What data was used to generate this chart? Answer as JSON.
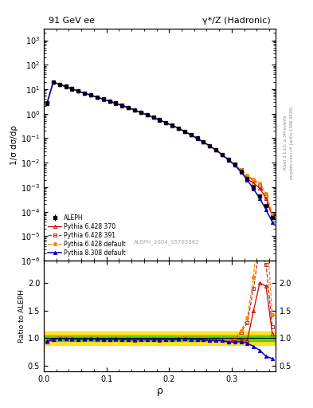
{
  "title_left": "91 GeV ee",
  "title_right": "γ*/Z (Hadronic)",
  "xlabel": "ρ",
  "ylabel_main": "1/σ dσ/dρ",
  "ylabel_ratio": "Ratio to ALEPH",
  "watermark": "ALEPH_2004_S5765862",
  "right_label_top": "Rivet 3.1.10, ≥ 3M events",
  "right_label_bot": "mcplots.cern.ch [arXiv:1306.3436]",
  "xlim": [
    0.0,
    0.37
  ],
  "ylim_main": [
    1e-06,
    3000
  ],
  "ylim_ratio": [
    0.4,
    2.4
  ],
  "ratio_yticks": [
    0.5,
    1.0,
    1.5,
    2.0
  ],
  "rho_data": [
    0.005,
    0.015,
    0.025,
    0.035,
    0.045,
    0.055,
    0.065,
    0.075,
    0.085,
    0.095,
    0.105,
    0.115,
    0.125,
    0.135,
    0.145,
    0.155,
    0.165,
    0.175,
    0.185,
    0.195,
    0.205,
    0.215,
    0.225,
    0.235,
    0.245,
    0.255,
    0.265,
    0.275,
    0.285,
    0.295,
    0.305,
    0.315,
    0.325,
    0.335,
    0.345,
    0.355,
    0.365
  ],
  "aleph_y": [
    2.8,
    20.0,
    16.0,
    13.0,
    10.5,
    8.5,
    7.0,
    5.8,
    4.8,
    4.0,
    3.3,
    2.7,
    2.2,
    1.8,
    1.45,
    1.15,
    0.92,
    0.72,
    0.57,
    0.44,
    0.34,
    0.26,
    0.19,
    0.14,
    0.1,
    0.072,
    0.05,
    0.034,
    0.022,
    0.014,
    0.0085,
    0.0045,
    0.0022,
    0.001,
    0.00045,
    0.00018,
    6e-05
  ],
  "aleph_yerr": [
    0.3,
    0.5,
    0.4,
    0.3,
    0.25,
    0.2,
    0.16,
    0.13,
    0.11,
    0.09,
    0.08,
    0.06,
    0.05,
    0.04,
    0.035,
    0.028,
    0.022,
    0.018,
    0.014,
    0.011,
    0.009,
    0.007,
    0.005,
    0.004,
    0.003,
    0.002,
    0.0015,
    0.001,
    0.0007,
    0.0005,
    0.0003,
    0.00018,
    9e-05,
    5e-05,
    2e-05,
    8e-06,
    3e-06
  ],
  "p6_370_y": [
    2.6,
    19.5,
    15.8,
    12.8,
    10.3,
    8.3,
    6.85,
    5.7,
    4.7,
    3.9,
    3.2,
    2.65,
    2.15,
    1.75,
    1.4,
    1.12,
    0.9,
    0.7,
    0.55,
    0.43,
    0.33,
    0.255,
    0.187,
    0.137,
    0.098,
    0.07,
    0.048,
    0.033,
    0.021,
    0.013,
    0.0082,
    0.0044,
    0.0021,
    0.0015,
    0.0009,
    0.00035,
    6.5e-05
  ],
  "p6_391_y": [
    2.7,
    19.8,
    16.0,
    13.0,
    10.4,
    8.4,
    6.95,
    5.75,
    4.75,
    3.95,
    3.25,
    2.68,
    2.18,
    1.77,
    1.42,
    1.13,
    0.905,
    0.71,
    0.558,
    0.433,
    0.334,
    0.258,
    0.19,
    0.138,
    0.099,
    0.071,
    0.049,
    0.0335,
    0.0215,
    0.0134,
    0.0083,
    0.005,
    0.0028,
    0.0019,
    0.0012,
    0.00042,
    7.2e-05
  ],
  "p6_def_y": [
    2.75,
    20.0,
    16.1,
    13.1,
    10.5,
    8.45,
    7.0,
    5.8,
    4.8,
    4.0,
    3.28,
    2.7,
    2.2,
    1.78,
    1.43,
    1.14,
    0.91,
    0.715,
    0.562,
    0.436,
    0.336,
    0.26,
    0.191,
    0.139,
    0.1,
    0.072,
    0.0498,
    0.0338,
    0.0217,
    0.0135,
    0.0085,
    0.0051,
    0.003,
    0.0021,
    0.0015,
    0.00055,
    8.5e-05
  ],
  "p8_def_y": [
    2.65,
    19.6,
    15.9,
    12.9,
    10.35,
    8.35,
    6.88,
    5.72,
    4.72,
    3.92,
    3.22,
    2.66,
    2.16,
    1.76,
    1.41,
    1.12,
    0.898,
    0.705,
    0.554,
    0.43,
    0.331,
    0.256,
    0.188,
    0.137,
    0.098,
    0.07,
    0.048,
    0.0328,
    0.021,
    0.013,
    0.0079,
    0.0042,
    0.002,
    0.00085,
    0.00035,
    0.00012,
    3.8e-05
  ],
  "p6_370_color": "#cc0000",
  "p6_391_color": "#aa3333",
  "p6_def_color": "#ff8800",
  "p8_def_color": "#0000cc",
  "aleph_color": "#000000",
  "band_green": "#00cc00",
  "band_yellow": "#ffdd00",
  "bg_color": "#ffffff",
  "ratio_p6_370": [
    0.93,
    0.975,
    0.988,
    0.985,
    0.981,
    0.976,
    0.979,
    0.983,
    0.979,
    0.975,
    0.97,
    0.981,
    0.977,
    0.972,
    0.966,
    0.974,
    0.978,
    0.972,
    0.965,
    0.977,
    0.971,
    0.981,
    0.984,
    0.979,
    0.98,
    0.972,
    0.96,
    0.971,
    0.955,
    0.929,
    0.965,
    0.978,
    0.955,
    1.5,
    2.0,
    1.94,
    1.08
  ],
  "ratio_p6_391": [
    0.96,
    0.99,
    1.0,
    1.0,
    0.99,
    0.988,
    0.993,
    0.991,
    0.99,
    0.988,
    0.985,
    0.993,
    0.991,
    0.983,
    0.979,
    0.983,
    0.983,
    0.986,
    0.979,
    0.984,
    0.982,
    0.992,
    1.0,
    0.986,
    0.99,
    0.986,
    0.98,
    0.985,
    0.977,
    0.957,
    0.976,
    1.111,
    1.273,
    1.9,
    2.67,
    2.33,
    1.2
  ],
  "ratio_p6_def": [
    0.982,
    1.0,
    1.006,
    1.008,
    1.0,
    0.994,
    1.0,
    1.0,
    1.0,
    1.0,
    0.994,
    1.0,
    1.0,
    0.989,
    0.986,
    0.991,
    0.989,
    0.993,
    0.986,
    0.991,
    0.988,
    1.0,
    1.005,
    0.993,
    1.0,
    1.0,
    0.996,
    0.994,
    0.986,
    0.964,
    1.0,
    1.133,
    1.364,
    2.1,
    3.33,
    3.06,
    1.42
  ],
  "ratio_p8_def": [
    0.946,
    0.98,
    0.994,
    0.992,
    0.986,
    0.982,
    0.983,
    0.986,
    0.983,
    0.98,
    0.976,
    0.985,
    0.982,
    0.978,
    0.972,
    0.974,
    0.976,
    0.979,
    0.972,
    0.977,
    0.974,
    0.985,
    0.989,
    0.979,
    0.98,
    0.972,
    0.96,
    0.965,
    0.955,
    0.929,
    0.929,
    0.933,
    0.909,
    0.85,
    0.78,
    0.67,
    0.63
  ],
  "ratio_band_green": [
    0.95,
    1.05
  ],
  "ratio_band_yellow": [
    0.88,
    1.12
  ]
}
